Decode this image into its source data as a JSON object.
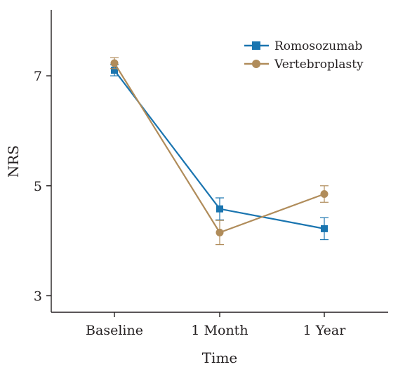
{
  "chart_data": {
    "type": "line",
    "title": "",
    "xlabel": "Time",
    "ylabel": "NRS",
    "categories": [
      "Baseline",
      "1 Month",
      "1 Year"
    ],
    "ylim": [
      2.7,
      8.2
    ],
    "yticks": [
      3,
      5,
      7
    ],
    "grid": false,
    "legend_position": "top-right",
    "series": [
      {
        "name": "Romosozumab",
        "color": "#1a75b0",
        "marker": "square",
        "values": [
          7.1,
          4.58,
          4.22
        ],
        "error": [
          0.1,
          0.2,
          0.2
        ]
      },
      {
        "name": "Vertebroplasty",
        "color": "#b08c5a",
        "marker": "circle",
        "values": [
          7.23,
          4.15,
          4.85
        ],
        "error": [
          0.1,
          0.22,
          0.15
        ]
      }
    ]
  }
}
